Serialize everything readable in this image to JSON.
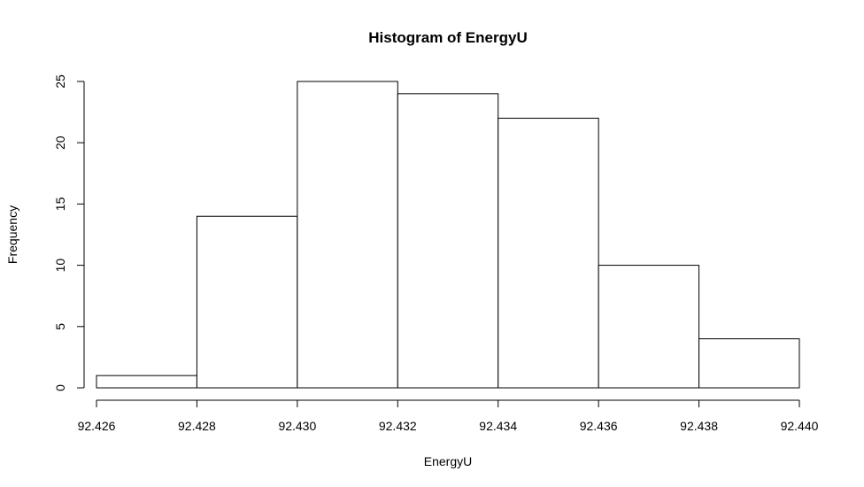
{
  "chart_data": {
    "type": "bar",
    "title": "Histogram of EnergyU",
    "xlabel": "EnergyU",
    "ylabel": "Frequency",
    "bins": [
      {
        "x0": 92.426,
        "x1": 92.428,
        "count": 1
      },
      {
        "x0": 92.428,
        "x1": 92.43,
        "count": 14
      },
      {
        "x0": 92.43,
        "x1": 92.432,
        "count": 25
      },
      {
        "x0": 92.432,
        "x1": 92.434,
        "count": 24
      },
      {
        "x0": 92.434,
        "x1": 92.436,
        "count": 22
      },
      {
        "x0": 92.436,
        "x1": 92.438,
        "count": 10
      },
      {
        "x0": 92.438,
        "x1": 92.44,
        "count": 4
      }
    ],
    "xlim": [
      92.426,
      92.44
    ],
    "ylim": [
      0,
      25
    ],
    "xticks": [
      "92.426",
      "92.428",
      "92.430",
      "92.432",
      "92.434",
      "92.436",
      "92.438",
      "92.440"
    ],
    "yticks": [
      "0",
      "5",
      "10",
      "15",
      "20",
      "25"
    ],
    "bar_fill": "#ffffff",
    "bar_stroke": "#000000",
    "grid": false,
    "legend": "none"
  }
}
